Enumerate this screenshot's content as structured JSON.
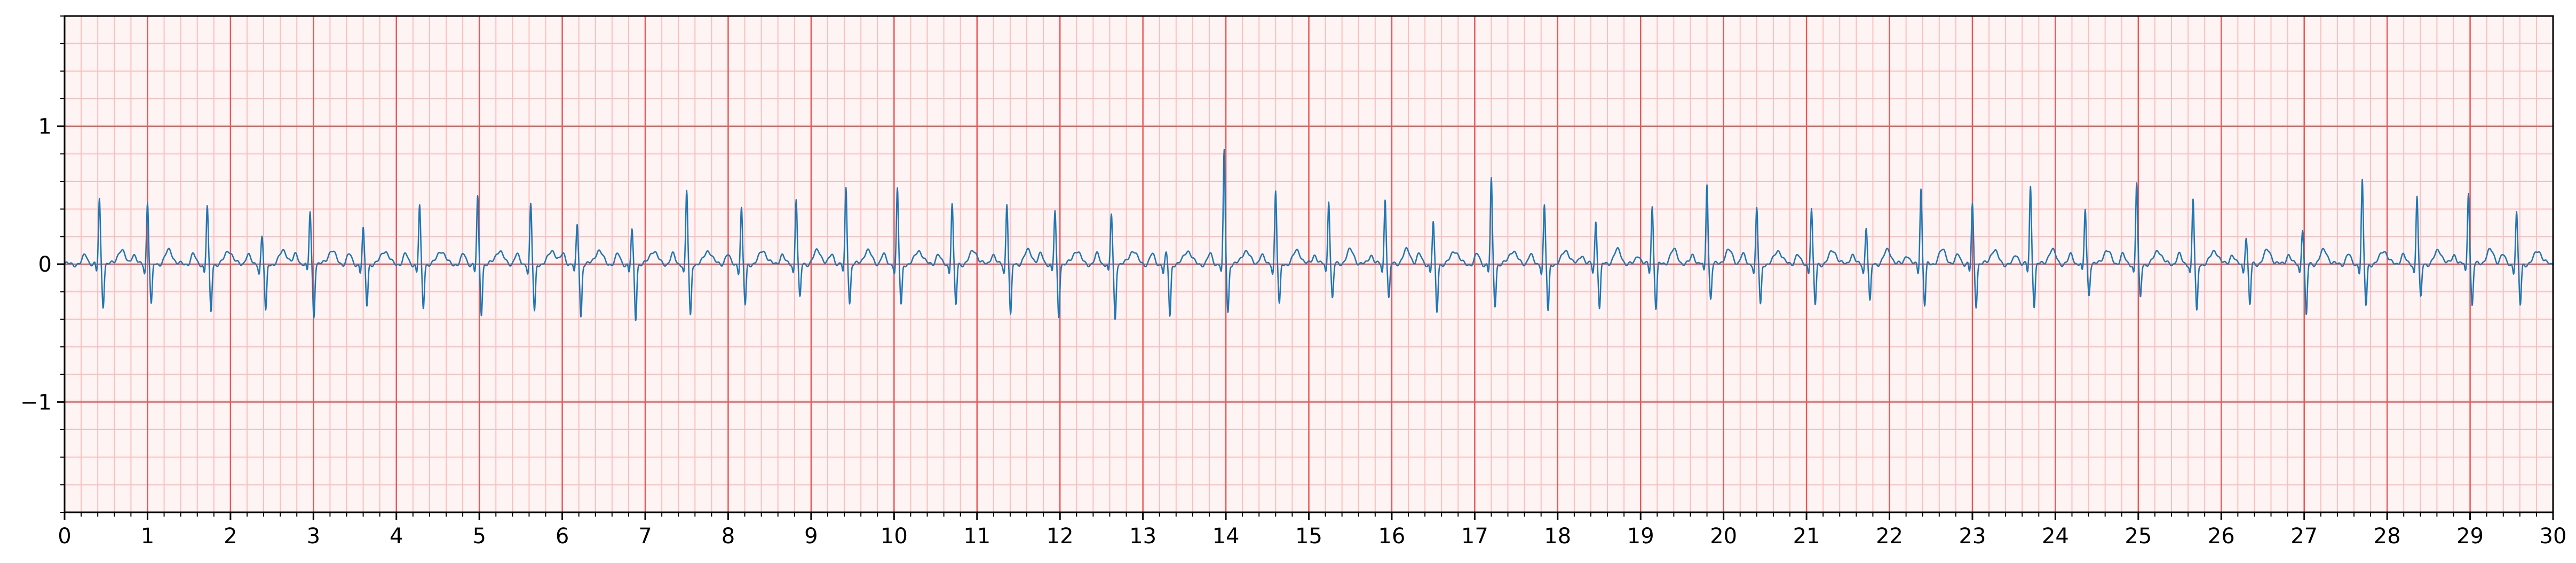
{
  "chart_data": {
    "type": "line",
    "title": "",
    "xlabel": "",
    "ylabel": "",
    "xlim": [
      0,
      30
    ],
    "ylim": [
      -1.8,
      1.8
    ],
    "x_ticks": [
      0,
      1,
      2,
      3,
      4,
      5,
      6,
      7,
      8,
      9,
      10,
      11,
      12,
      13,
      14,
      15,
      16,
      17,
      18,
      19,
      20,
      21,
      22,
      23,
      24,
      25,
      26,
      27,
      28,
      29,
      30
    ],
    "x_tick_labels": [
      "0",
      "1",
      "2",
      "3",
      "4",
      "5",
      "6",
      "7",
      "8",
      "9",
      "10",
      "11",
      "12",
      "13",
      "14",
      "15",
      "16",
      "17",
      "18",
      "19",
      "20",
      "21",
      "22",
      "23",
      "24",
      "25",
      "26",
      "27",
      "28",
      "29",
      "30"
    ],
    "y_ticks": [
      -1,
      0,
      1
    ],
    "y_tick_labels": [
      "−1",
      "0",
      "1"
    ],
    "grid": {
      "major_x_step": 1,
      "minor_x_step": 0.2,
      "major_y_step": 1,
      "minor_y_step": 0.2,
      "major_color": "#ee5555",
      "minor_color": "#ffbcbc",
      "background": "#fff4f4"
    },
    "series": [
      {
        "color": "#1f77b4",
        "beat_times": [
          0.42,
          1.0,
          1.72,
          2.38,
          2.96,
          3.6,
          4.28,
          4.98,
          5.62,
          6.18,
          6.84,
          7.5,
          8.16,
          8.82,
          9.42,
          10.04,
          10.7,
          11.36,
          11.94,
          12.62,
          13.28,
          13.98,
          14.6,
          15.24,
          15.92,
          16.5,
          17.2,
          17.84,
          18.46,
          19.14,
          19.8,
          20.4,
          21.06,
          21.72,
          22.38,
          23.0,
          23.7,
          24.36,
          24.98,
          25.66,
          26.3,
          26.98,
          27.7,
          28.36,
          28.98,
          29.56
        ],
        "r_peaks": [
          0.47,
          0.45,
          0.42,
          0.2,
          0.38,
          0.25,
          0.42,
          0.48,
          0.43,
          0.28,
          0.24,
          0.53,
          0.4,
          0.48,
          0.55,
          0.54,
          0.44,
          0.44,
          0.38,
          0.36,
          0.07,
          0.82,
          0.53,
          0.47,
          0.48,
          0.3,
          0.61,
          0.42,
          0.31,
          0.42,
          0.59,
          0.4,
          0.4,
          0.27,
          0.55,
          0.43,
          0.56,
          0.4,
          0.59,
          0.47,
          0.2,
          0.26,
          0.6,
          0.5,
          0.53,
          0.37
        ],
        "s_troughs": [
          -0.3,
          -0.3,
          -0.35,
          -0.35,
          -0.38,
          -0.3,
          -0.32,
          -0.36,
          -0.35,
          -0.38,
          -0.4,
          -0.38,
          -0.3,
          -0.25,
          -0.28,
          -0.3,
          -0.3,
          -0.38,
          -0.38,
          -0.4,
          -0.38,
          -0.35,
          -0.3,
          -0.25,
          -0.25,
          -0.35,
          -0.3,
          -0.35,
          -0.32,
          -0.32,
          -0.25,
          -0.3,
          -0.3,
          -0.28,
          -0.3,
          -0.3,
          -0.3,
          -0.22,
          -0.25,
          -0.35,
          -0.3,
          -0.38,
          -0.3,
          -0.25,
          -0.3,
          -0.3
        ],
        "baseline": 0.0
      }
    ]
  }
}
